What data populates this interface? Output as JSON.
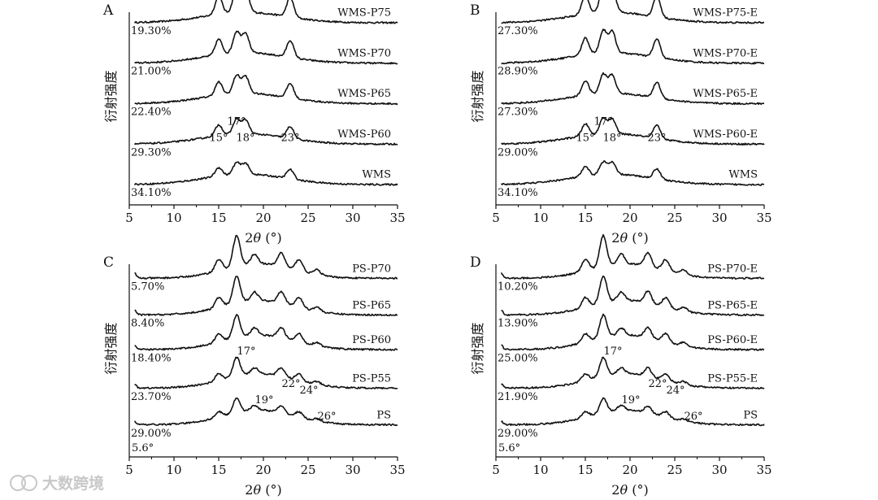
{
  "chart_data": [
    {
      "panel": "A",
      "type": "line",
      "ylabel": "衍射强度",
      "xlabel_main": "2",
      "xlabel_theta": "θ",
      "xlabel_unit": " (°)",
      "xlim": [
        5,
        35
      ],
      "xticks": [
        5,
        10,
        15,
        20,
        25,
        30,
        35
      ],
      "baseline": "broad",
      "series": [
        {
          "name": "WMS-P75",
          "crystallinity": "19.30%",
          "level": 0.92
        },
        {
          "name": "WMS-P70",
          "crystallinity": "21.00%",
          "level": 0.71
        },
        {
          "name": "WMS-P65",
          "crystallinity": "22.40%",
          "level": 0.5
        },
        {
          "name": "WMS-P60",
          "crystallinity": "29.30%",
          "level": 0.29
        },
        {
          "name": "WMS",
          "crystallinity": "34.10%",
          "level": 0.08
        }
      ],
      "peaks": [
        {
          "x": 15,
          "height": 0.55
        },
        {
          "x": 17,
          "height": 0.75
        },
        {
          "x": 18,
          "height": 0.7
        },
        {
          "x": 23,
          "height": 0.6
        }
      ],
      "annotations": [
        {
          "text": "15°",
          "x": 15
        },
        {
          "text": "17°",
          "x": 17
        },
        {
          "text": "18°",
          "x": 18
        },
        {
          "text": "23°",
          "x": 23
        }
      ]
    },
    {
      "panel": "B",
      "type": "line",
      "ylabel": "衍射强度",
      "xlabel_main": "2",
      "xlabel_theta": "θ",
      "xlabel_unit": " (°)",
      "xlim": [
        5,
        35
      ],
      "xticks": [
        5,
        10,
        15,
        20,
        25,
        30,
        35
      ],
      "baseline": "broad",
      "series": [
        {
          "name": "WMS-P75-E",
          "crystallinity": "27.30%",
          "level": 0.92
        },
        {
          "name": "WMS-P70-E",
          "crystallinity": "28.90%",
          "level": 0.71
        },
        {
          "name": "WMS-P65-E",
          "crystallinity": "27.30%",
          "level": 0.5
        },
        {
          "name": "WMS-P60-E",
          "crystallinity": "29.00%",
          "level": 0.29
        },
        {
          "name": "WMS",
          "crystallinity": "34.10%",
          "level": 0.08
        }
      ],
      "peaks": [
        {
          "x": 15,
          "height": 0.6
        },
        {
          "x": 17,
          "height": 0.8
        },
        {
          "x": 18,
          "height": 0.75
        },
        {
          "x": 23,
          "height": 0.65
        }
      ],
      "annotations": [
        {
          "text": "15°",
          "x": 15
        },
        {
          "text": "17°",
          "x": 17
        },
        {
          "text": "18°",
          "x": 18
        },
        {
          "text": "23°",
          "x": 23
        }
      ]
    },
    {
      "panel": "C",
      "type": "line",
      "ylabel": "衍射强度",
      "xlabel_main": "2",
      "xlabel_theta": "θ",
      "xlabel_unit": " (°)",
      "xlim": [
        5,
        35
      ],
      "xticks": [
        5,
        10,
        15,
        20,
        25,
        30,
        35
      ],
      "baseline": "hump",
      "series": [
        {
          "name": "PS-P70",
          "crystallinity": "5.70%",
          "level": 0.9
        },
        {
          "name": "PS-P65",
          "crystallinity": "8.40%",
          "level": 0.71
        },
        {
          "name": "PS-P60",
          "crystallinity": "18.40%",
          "level": 0.53
        },
        {
          "name": "PS-P55",
          "crystallinity": "23.70%",
          "level": 0.33
        },
        {
          "name": "PS",
          "crystallinity": "29.00%",
          "level": 0.14
        }
      ],
      "peaks": [
        {
          "x": 5.6,
          "height": 0.1
        },
        {
          "x": 15,
          "height": 0.35
        },
        {
          "x": 17,
          "height": 0.95
        },
        {
          "x": 19,
          "height": 0.3
        },
        {
          "x": 22,
          "height": 0.42
        },
        {
          "x": 24,
          "height": 0.35
        },
        {
          "x": 26,
          "height": 0.15
        }
      ],
      "annotations": [
        {
          "text": "17°",
          "x": 17
        },
        {
          "text": "19°",
          "x": 19
        },
        {
          "text": "22°",
          "x": 22
        },
        {
          "text": "24°",
          "x": 24
        },
        {
          "text": "26°",
          "x": 26
        },
        {
          "text": "5.6°",
          "x": 5.6
        }
      ]
    },
    {
      "panel": "D",
      "type": "line",
      "ylabel": "衍射强度",
      "xlabel_main": "2",
      "xlabel_theta": "θ",
      "xlabel_unit": " (°)",
      "xlim": [
        5,
        35
      ],
      "xticks": [
        5,
        10,
        15,
        20,
        25,
        30,
        35
      ],
      "baseline": "hump",
      "series": [
        {
          "name": "PS-P70-E",
          "crystallinity": "10.20%",
          "level": 0.9
        },
        {
          "name": "PS-P65-E",
          "crystallinity": "13.90%",
          "level": 0.71
        },
        {
          "name": "PS-P60-E",
          "crystallinity": "25.00%",
          "level": 0.53
        },
        {
          "name": "PS-P55-E",
          "crystallinity": "21.90%",
          "level": 0.33
        },
        {
          "name": "PS",
          "crystallinity": "29.00%",
          "level": 0.14
        }
      ],
      "peaks": [
        {
          "x": 5.6,
          "height": 0.1
        },
        {
          "x": 15,
          "height": 0.35
        },
        {
          "x": 17,
          "height": 0.95
        },
        {
          "x": 19,
          "height": 0.3
        },
        {
          "x": 22,
          "height": 0.42
        },
        {
          "x": 24,
          "height": 0.35
        },
        {
          "x": 26,
          "height": 0.15
        }
      ],
      "annotations": [
        {
          "text": "17°",
          "x": 17
        },
        {
          "text": "19°",
          "x": 19
        },
        {
          "text": "22°",
          "x": 22
        },
        {
          "text": "24°",
          "x": 24
        },
        {
          "text": "26°",
          "x": 26
        },
        {
          "text": "5.6°",
          "x": 5.6
        }
      ]
    }
  ],
  "watermark": {
    "text": "大数跨境"
  },
  "colors": {
    "line": "#111111",
    "axis": "#111111",
    "watermark": "#c8c8c8"
  }
}
